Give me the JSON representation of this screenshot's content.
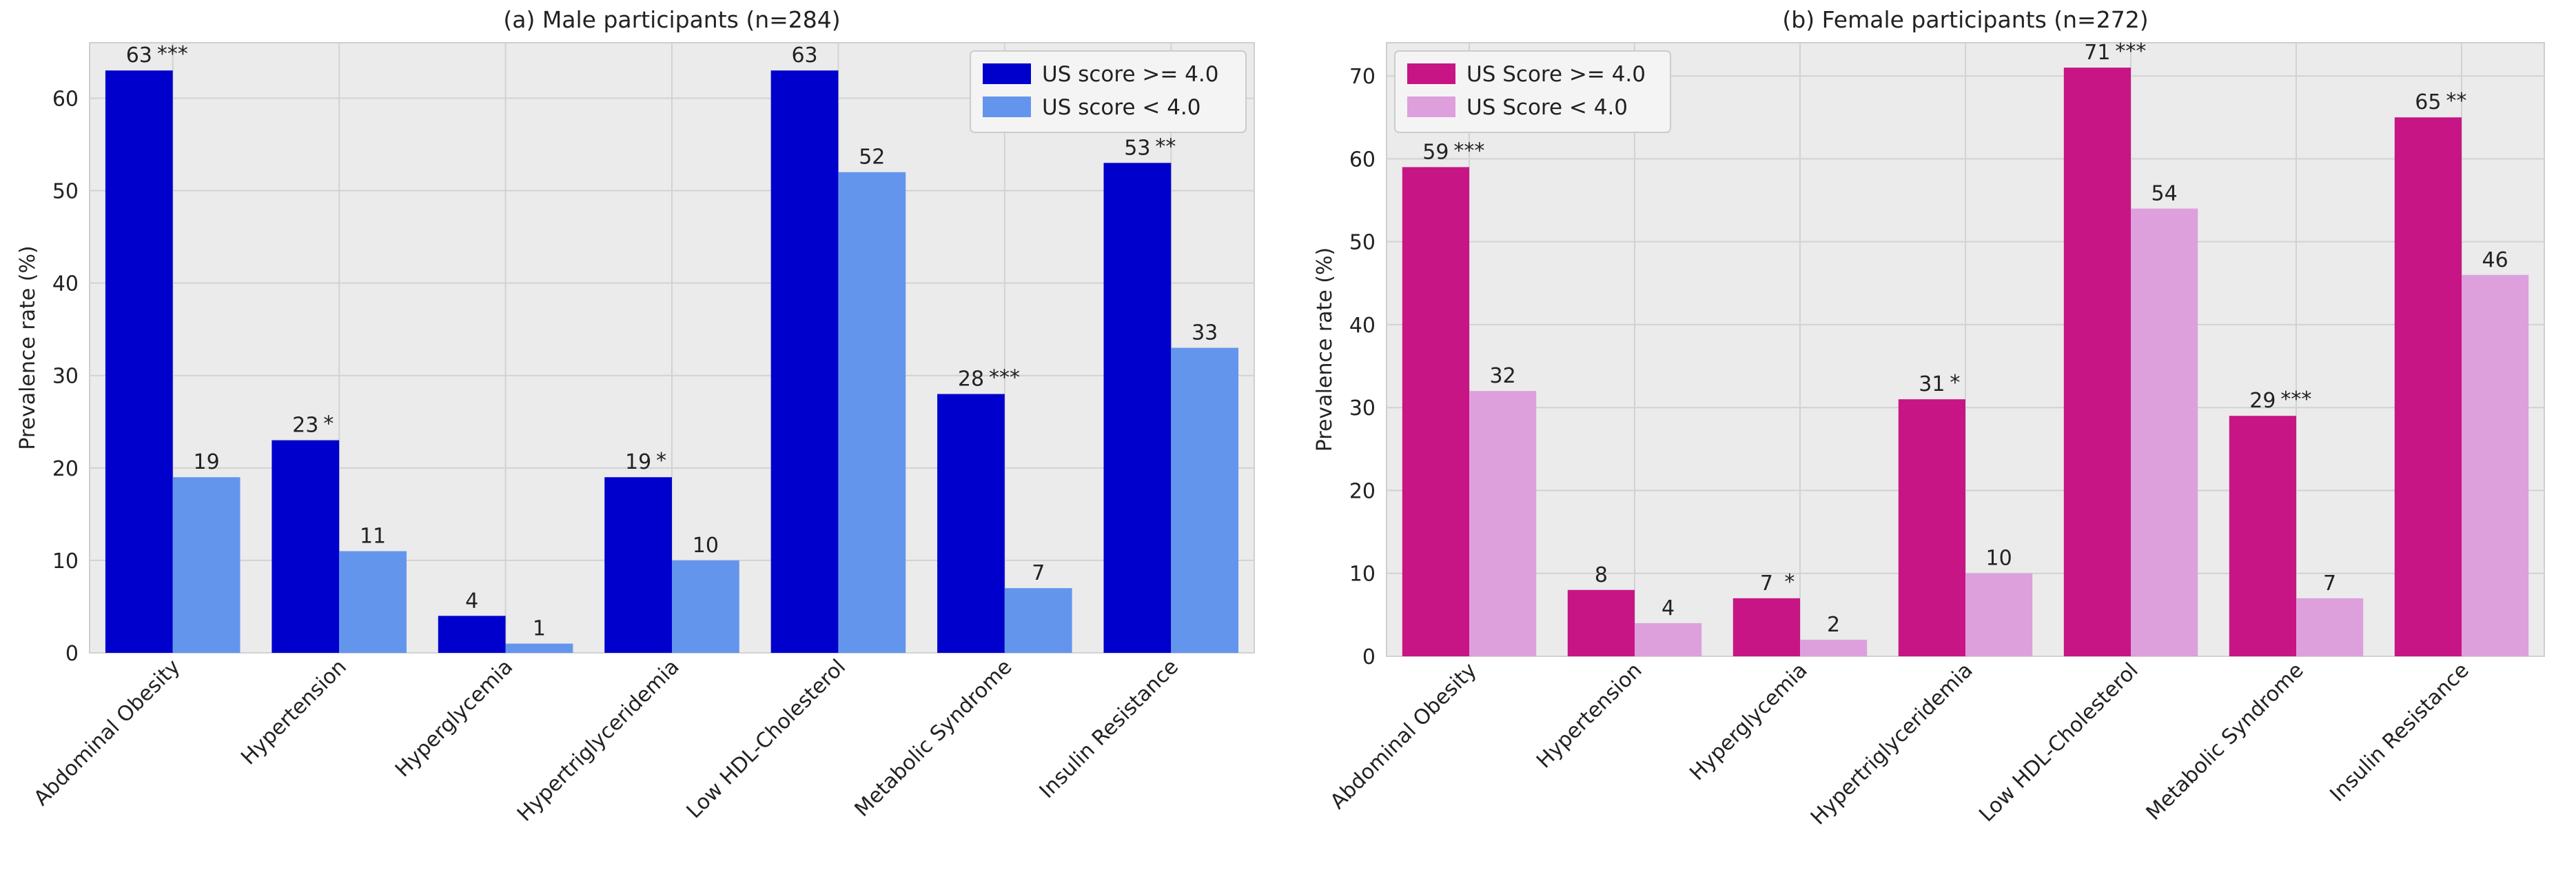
{
  "chart_data": [
    {
      "type": "bar",
      "title": "(a) Male participants (n=284)",
      "xlabel": "",
      "ylabel": "Prevalence rate (%)",
      "ylim": [
        0,
        66
      ],
      "yticks": [
        0,
        10,
        20,
        30,
        40,
        50,
        60
      ],
      "grid": true,
      "legend_position": "top-right",
      "categories": [
        "Abdominal Obesity",
        "Hypertension",
        "Hyperglycemia",
        "Hypertriglyceridemia",
        "Low HDL-Cholesterol",
        "Metabolic Syndrome",
        "Insulin Resistance"
      ],
      "series": [
        {
          "name": " US score >= 4.0",
          "color": "#0000cc",
          "values": [
            63,
            23,
            4,
            19,
            63,
            28,
            53
          ]
        },
        {
          "name": "US score < 4.0",
          "color": "#6495ed",
          "values": [
            19,
            11,
            1,
            10,
            52,
            7,
            33
          ]
        }
      ],
      "significance": [
        "***",
        "*",
        "",
        "*",
        "",
        "***",
        "**"
      ]
    },
    {
      "type": "bar",
      "title": "(b) Female participants (n=272)",
      "xlabel": "",
      "ylabel": "Prevalence rate (%)",
      "ylim": [
        0,
        74
      ],
      "yticks": [
        0,
        10,
        20,
        30,
        40,
        50,
        60,
        70
      ],
      "grid": true,
      "legend_position": "top-left",
      "categories": [
        "Abdominal Obesity",
        "Hypertension",
        "Hyperglycemia",
        "Hypertriglyceridemia",
        "Low HDL-Cholesterol",
        "Metabolic Syndrome",
        "Insulin Resistance"
      ],
      "series": [
        {
          "name": "US Score >= 4.0",
          "color": "#c71585",
          "values": [
            59,
            8,
            7,
            31,
            71,
            29,
            65
          ]
        },
        {
          "name": "US Score < 4.0",
          "color": "#dda0dd",
          "values": [
            32,
            4,
            2,
            10,
            54,
            7,
            46
          ]
        }
      ],
      "significance": [
        "***",
        "",
        "*",
        "*",
        "***",
        "***",
        "**"
      ]
    }
  ]
}
